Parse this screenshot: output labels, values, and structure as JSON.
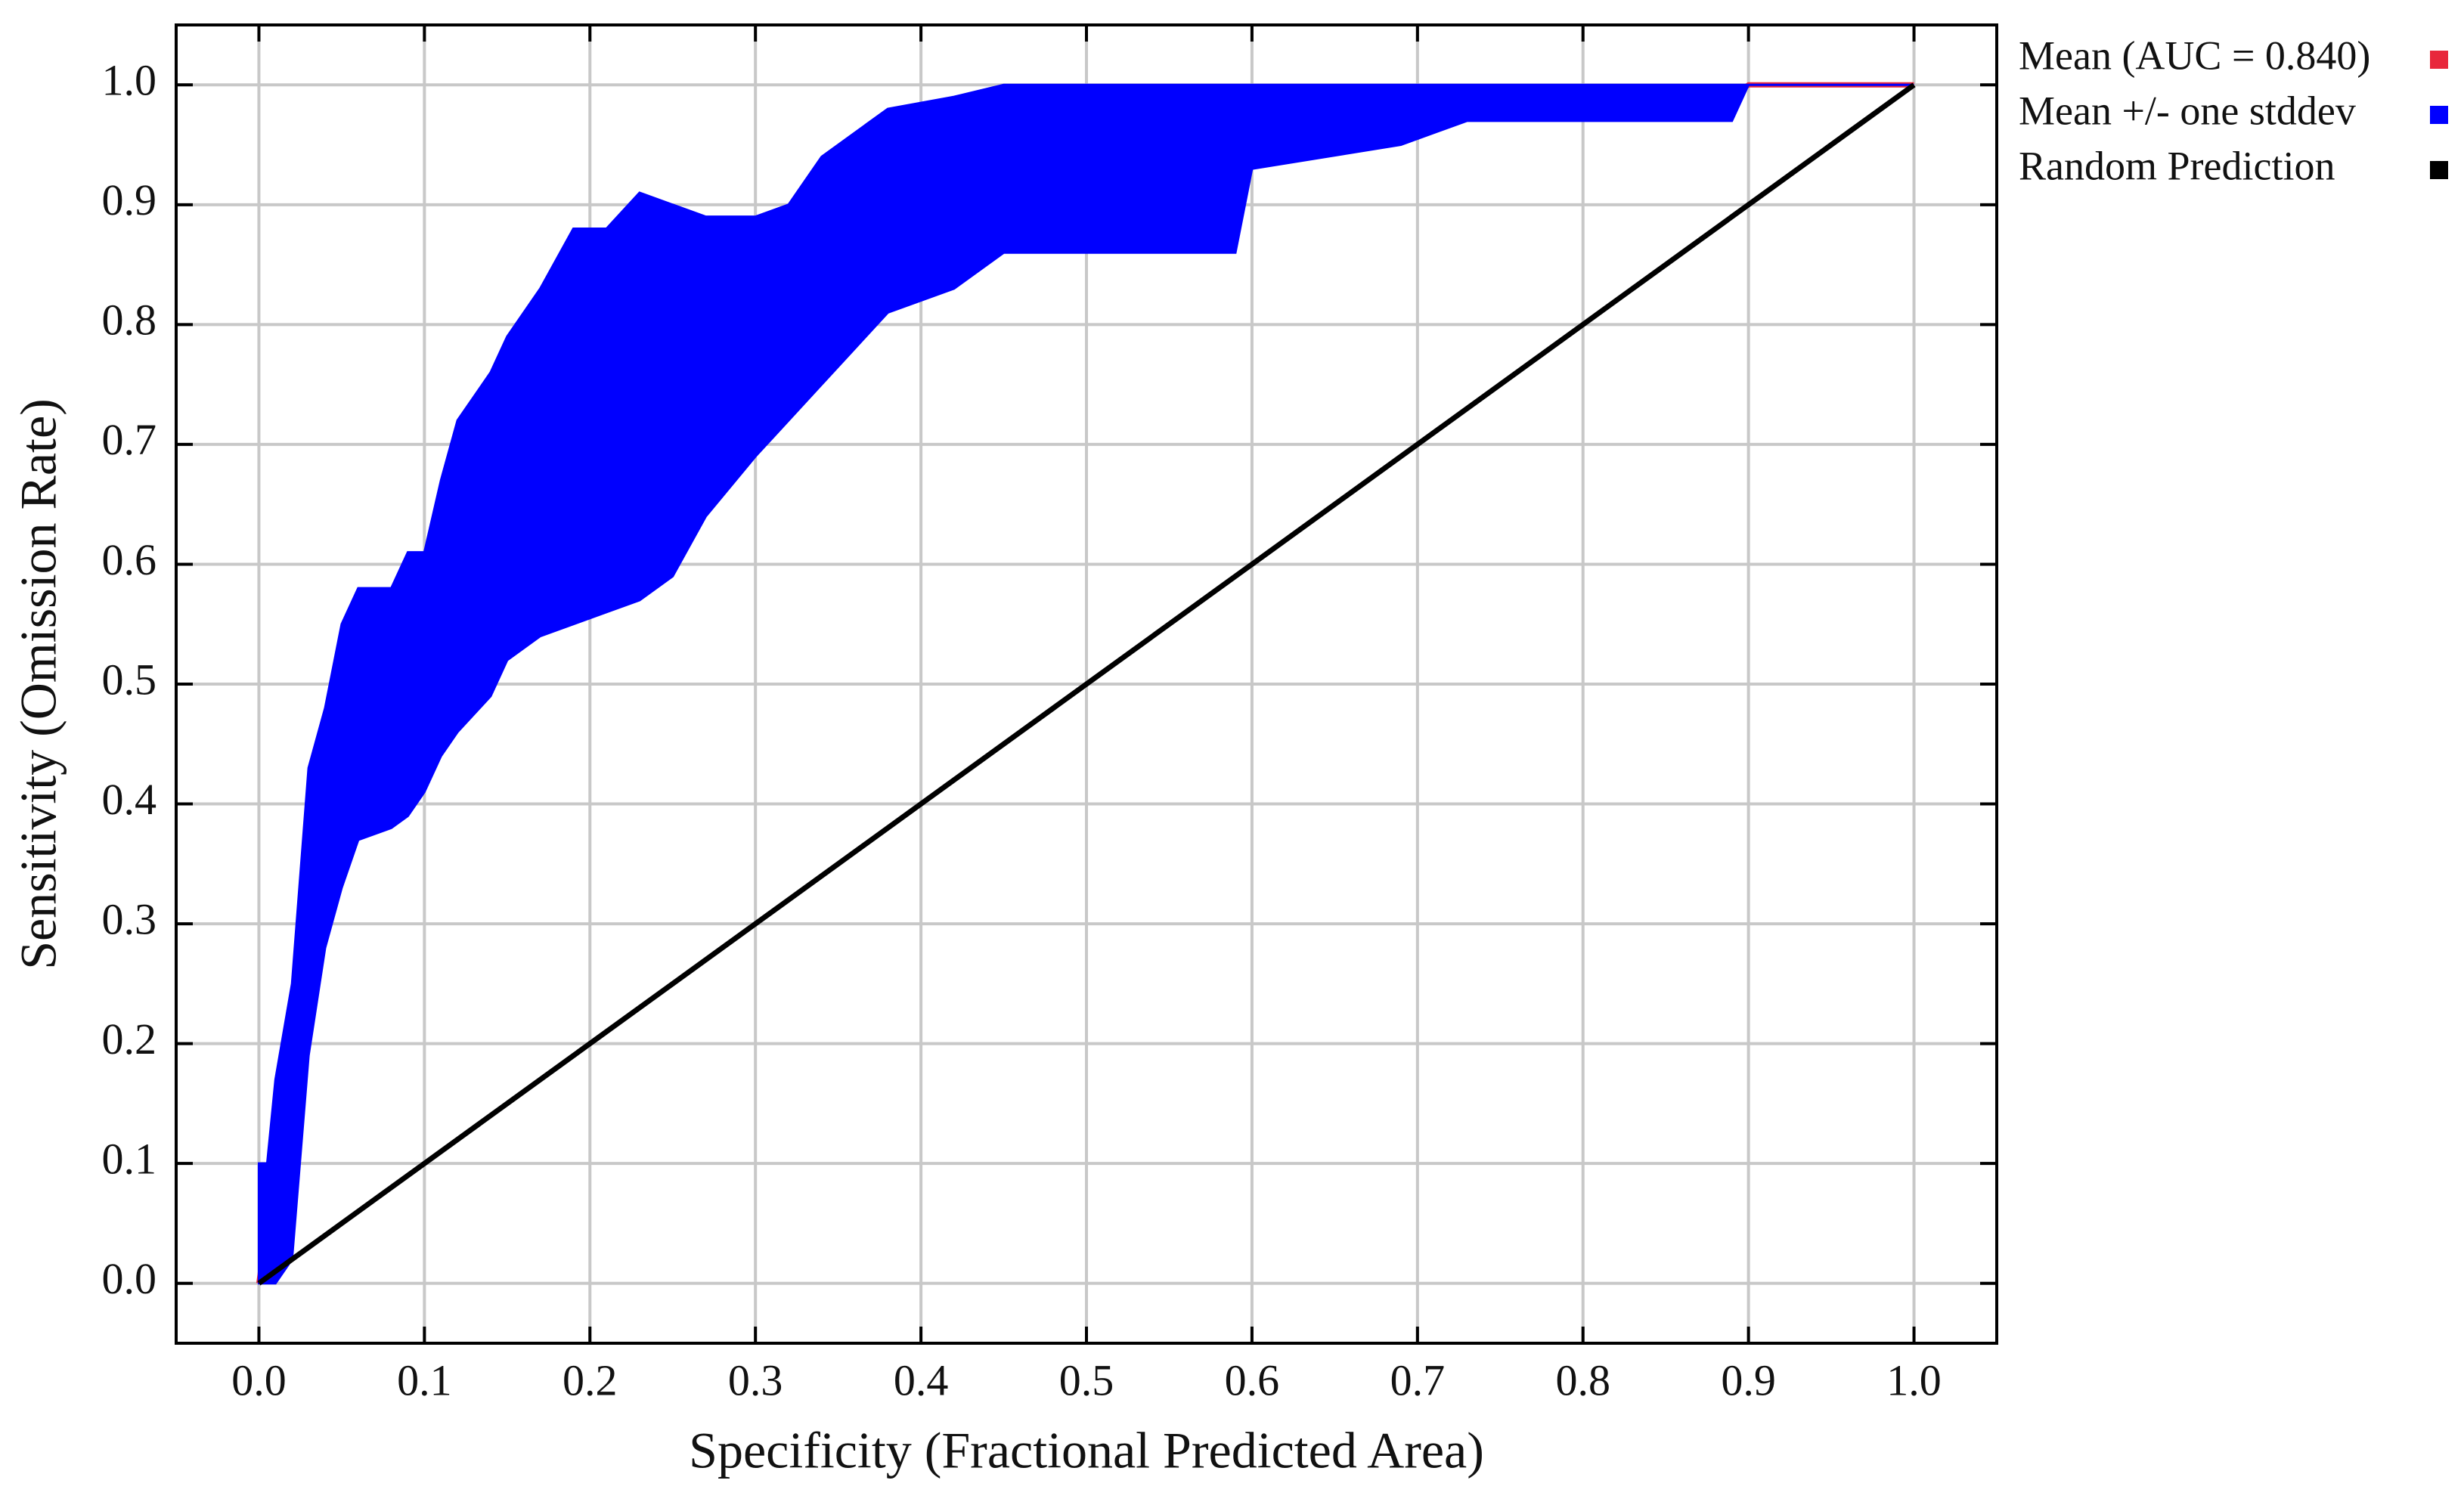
{
  "chart_data": {
    "type": "line",
    "xlabel": "Specificity (Fractional Predicted Area)",
    "ylabel": "Sensitivity (Omission Rate)",
    "xlim": [
      -0.05,
      1.05
    ],
    "ylim": [
      -0.05,
      1.05
    ],
    "xticks": [
      {
        "value": 0,
        "label": "0.0"
      },
      0.1,
      0.2,
      0.3,
      0.4,
      0.5,
      0.6,
      0.7,
      0.8,
      0.9,
      {
        "value": 1,
        "label": "1.0"
      }
    ],
    "yticks": [
      {
        "value": 0,
        "label": "0.0"
      },
      0.1,
      0.2,
      0.3,
      0.4,
      0.5,
      0.6,
      0.7,
      0.8,
      0.9,
      {
        "value": 1,
        "label": "1.0"
      }
    ],
    "grid": true,
    "legend": "outside-right",
    "x": [
      0,
      0.005,
      0.01,
      0.02,
      0.03,
      0.04,
      0.05,
      0.06,
      0.08,
      0.09,
      0.1,
      0.11,
      0.12,
      0.14,
      0.15,
      0.17,
      0.19,
      0.21,
      0.23,
      0.25,
      0.27,
      0.3,
      0.32,
      0.34,
      0.36,
      0.38,
      0.42,
      0.45,
      0.59,
      0.6,
      0.69,
      0.73,
      0.89,
      0.9,
      1
    ],
    "series": [
      {
        "name": "Mean (AUC = 0.840)",
        "color": "#e8283c",
        "values": [
          0,
          0.05,
          0.1,
          0.18,
          0.31,
          0.35,
          0.42,
          0.46,
          0.48,
          0.5,
          0.5,
          0.55,
          0.58,
          0.61,
          0.64,
          0.67,
          0.69,
          0.72,
          0.74,
          0.76,
          0.79,
          0.79,
          0.81,
          0.84,
          0.86,
          0.89,
          0.91,
          0.94,
          0.94,
          0.97,
          0.98,
          0.99,
          0.99,
          1,
          1
        ]
      },
      {
        "name": "Mean +/- one stddev",
        "color": "#0000ff",
        "lower": [
          0,
          0,
          0,
          0.02,
          0.19,
          0.28,
          0.33,
          0.37,
          0.38,
          0.39,
          0.41,
          0.44,
          0.46,
          0.49,
          0.52,
          0.54,
          0.55,
          0.56,
          0.57,
          0.59,
          0.64,
          0.69,
          0.72,
          0.75,
          0.78,
          0.81,
          0.83,
          0.86,
          0.86,
          0.93,
          0.95,
          0.97,
          0.97,
          1,
          1
        ],
        "upper": [
          0.1,
          0.1,
          0.17,
          0.25,
          0.43,
          0.48,
          0.55,
          0.58,
          0.58,
          0.61,
          0.61,
          0.67,
          0.72,
          0.76,
          0.79,
          0.83,
          0.88,
          0.88,
          0.91,
          0.9,
          0.89,
          0.89,
          0.9,
          0.94,
          0.96,
          0.98,
          0.99,
          1,
          1,
          1,
          1,
          1,
          1,
          1,
          1
        ]
      },
      {
        "name": "Random Prediction",
        "color": "#000000",
        "x": [
          0,
          1
        ],
        "values": [
          0,
          1
        ]
      }
    ]
  }
}
